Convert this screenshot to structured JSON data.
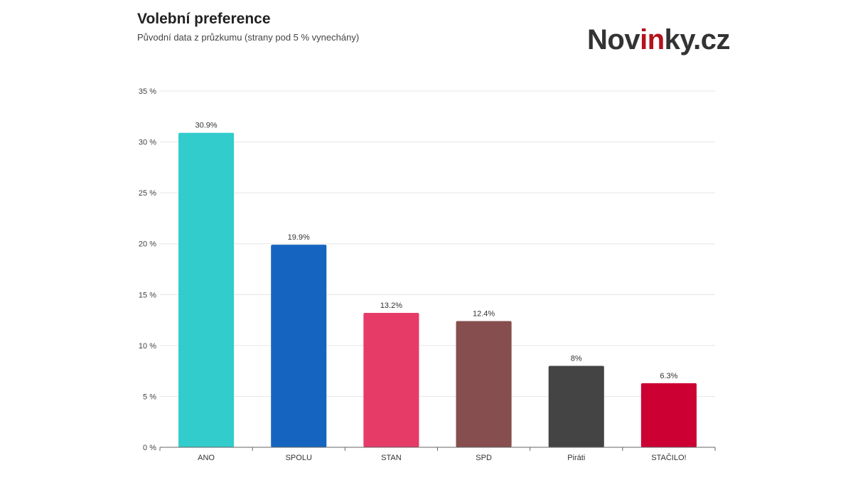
{
  "chart_data": {
    "type": "bar",
    "title": "Volební preference",
    "subtitle": "Původní data z průzkumu (strany pod 5 % vynechány)",
    "categories": [
      "ANO",
      "SPOLU",
      "STAN",
      "SPD",
      "Piráti",
      "STAČILO!"
    ],
    "values": [
      30.9,
      19.9,
      13.2,
      12.4,
      8,
      6.3
    ],
    "data_labels": [
      "30.9%",
      "19.9%",
      "13.2%",
      "12.4%",
      "8%",
      "6.3%"
    ],
    "colors": [
      "#33cccc",
      "#1565c0",
      "#e63a67",
      "#864e4e",
      "#444444",
      "#cc0033"
    ],
    "ylim": [
      0,
      35
    ],
    "yticks": [
      0,
      5,
      10,
      15,
      20,
      25,
      30,
      35
    ],
    "ytick_labels": [
      "0 %",
      "5 %",
      "10 %",
      "15 %",
      "20 %",
      "25 %",
      "30 %",
      "35 %"
    ],
    "grid": true,
    "xlabel": "",
    "ylabel": ""
  },
  "logo": {
    "text": "Novinky.cz",
    "part1": "Nov",
    "part2": "in",
    "part3": "ky.cz"
  }
}
